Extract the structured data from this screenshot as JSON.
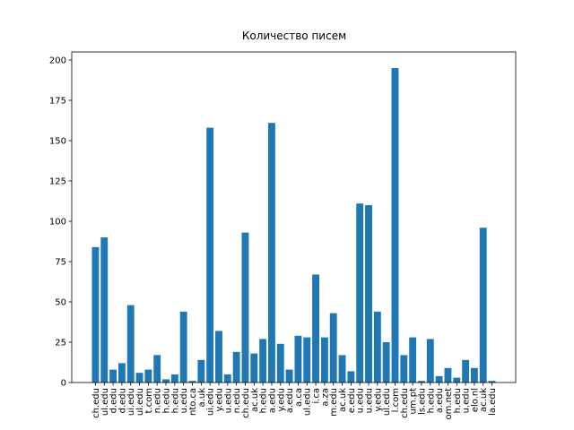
{
  "chart_data": {
    "type": "bar",
    "title": "Количество писем",
    "categories": [
      "ch.edu",
      "ul.edu",
      "d.edu",
      "d.edu",
      "ui.edu",
      "ul.edu",
      "t.com",
      "n.edu",
      "h.edu",
      "h.edu",
      "u.edu",
      "nto.ca",
      "a.uk",
      "ui.edu",
      "y.edu",
      "u.edu",
      "n.edu",
      "ch.edu",
      "ac.uk",
      "h.edu",
      "a.edu",
      "y.edu",
      "a.edu",
      "a.ca",
      "ul.edu",
      "i.ca",
      "a.za",
      "m.edu",
      "ac.uk",
      "e.edu",
      "u.edu",
      "u.edu",
      "y.edu",
      "ul.edu",
      "l.com",
      "ch.edu",
      "um.pt",
      "ls.edu",
      "h.edu",
      "a.edu",
      "om.net",
      "h.edu",
      "u.edu",
      "elo.nl",
      "ac.uk",
      "la.edu"
    ],
    "values": [
      84,
      90,
      8,
      12,
      48,
      6,
      8,
      17,
      2,
      5,
      44,
      1,
      14,
      158,
      32,
      5,
      19,
      93,
      18,
      27,
      161,
      24,
      8,
      29,
      28,
      67,
      28,
      43,
      17,
      7,
      111,
      110,
      44,
      25,
      195,
      17,
      28,
      1,
      27,
      4,
      9,
      3,
      14,
      9,
      96,
      1
    ],
    "color": "#1f77b4",
    "ylim": [
      0,
      205
    ],
    "yticks": [
      0,
      25,
      50,
      75,
      100,
      125,
      150,
      175,
      200
    ]
  }
}
